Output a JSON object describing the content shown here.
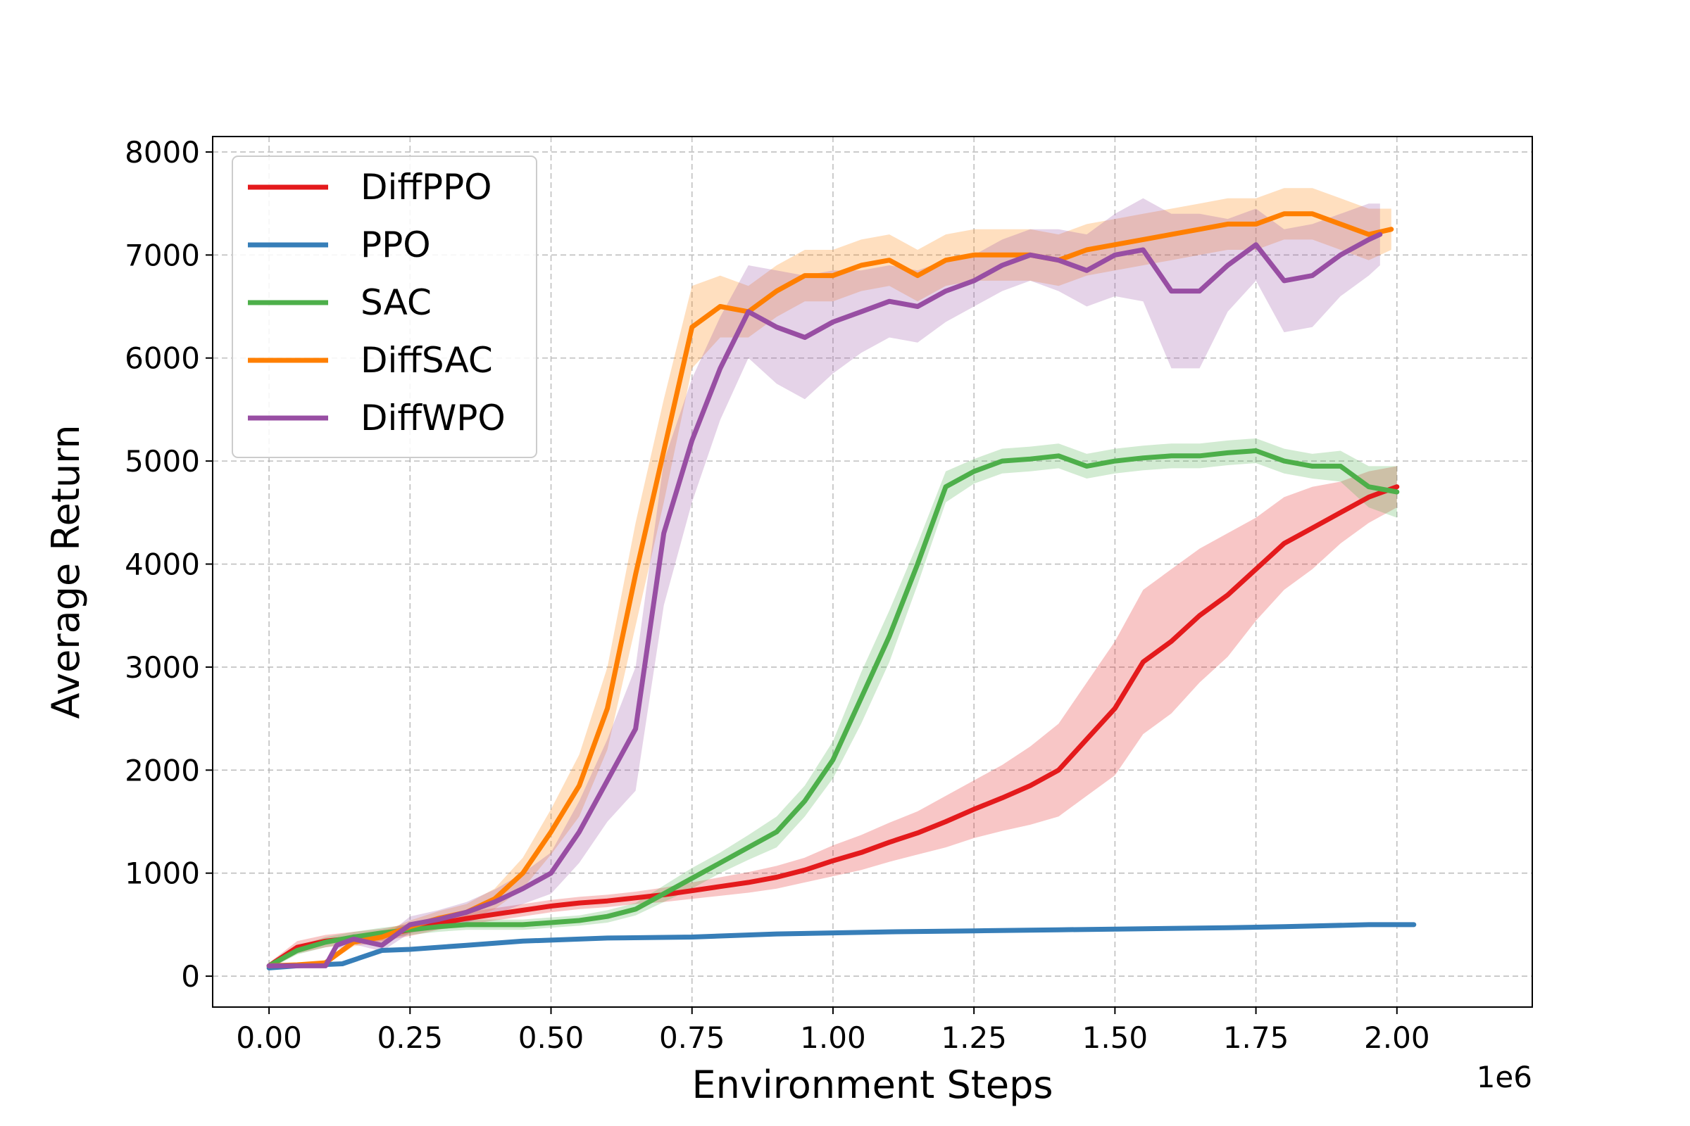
{
  "chart_data": {
    "type": "line",
    "title": "",
    "xlabel": "Environment Steps",
    "ylabel": "Average Return",
    "x_offset_label": "1e6",
    "xlim": [
      -0.1,
      2.24
    ],
    "ylim": [
      -300,
      8150
    ],
    "x_ticks": [
      0.0,
      0.25,
      0.5,
      0.75,
      1.0,
      1.25,
      1.5,
      1.75,
      2.0
    ],
    "x_tick_labels": [
      "0.00",
      "0.25",
      "0.50",
      "0.75",
      "1.00",
      "1.25",
      "1.50",
      "1.75",
      "2.00"
    ],
    "y_ticks": [
      0,
      1000,
      2000,
      3000,
      4000,
      5000,
      6000,
      7000,
      8000
    ],
    "y_tick_labels": [
      "0",
      "1000",
      "2000",
      "3000",
      "4000",
      "5000",
      "6000",
      "7000",
      "8000"
    ],
    "grid": true,
    "legend_position": "top-left",
    "series": [
      {
        "name": "DiffPPO",
        "color": "#e41a1c",
        "x": [
          0.0,
          0.05,
          0.1,
          0.15,
          0.2,
          0.25,
          0.3,
          0.35,
          0.4,
          0.45,
          0.5,
          0.55,
          0.6,
          0.65,
          0.7,
          0.75,
          0.8,
          0.85,
          0.9,
          0.95,
          1.0,
          1.05,
          1.1,
          1.15,
          1.2,
          1.25,
          1.3,
          1.35,
          1.4,
          1.45,
          1.5,
          1.55,
          1.6,
          1.65,
          1.7,
          1.75,
          1.8,
          1.85,
          1.9,
          1.95,
          2.0
        ],
        "y": [
          100,
          280,
          340,
          370,
          400,
          450,
          510,
          560,
          600,
          640,
          680,
          710,
          730,
          760,
          790,
          830,
          870,
          910,
          960,
          1030,
          1120,
          1200,
          1300,
          1390,
          1500,
          1620,
          1730,
          1850,
          2000,
          2300,
          2600,
          3050,
          3250,
          3500,
          3700,
          3950,
          4200,
          4350,
          4500,
          4650,
          4750
        ],
        "band": [
          30,
          60,
          60,
          60,
          60,
          60,
          60,
          60,
          60,
          60,
          60,
          60,
          60,
          60,
          70,
          80,
          90,
          100,
          110,
          120,
          150,
          170,
          190,
          210,
          250,
          280,
          320,
          380,
          450,
          550,
          650,
          700,
          700,
          650,
          600,
          500,
          450,
          400,
          300,
          250,
          200
        ]
      },
      {
        "name": "PPO",
        "color": "#377eb8",
        "x": [
          0.0,
          0.05,
          0.13,
          0.2,
          0.25,
          0.35,
          0.45,
          0.6,
          0.75,
          0.9,
          1.0,
          1.1,
          1.25,
          1.4,
          1.55,
          1.7,
          1.8,
          1.95,
          2.03
        ],
        "y": [
          80,
          100,
          120,
          250,
          260,
          300,
          340,
          370,
          380,
          410,
          420,
          430,
          440,
          450,
          460,
          470,
          480,
          500,
          500
        ],
        "band": [
          20,
          20,
          20,
          20,
          20,
          20,
          20,
          20,
          20,
          20,
          20,
          20,
          20,
          20,
          20,
          20,
          20,
          20,
          20
        ]
      },
      {
        "name": "SAC",
        "color": "#4daf4a",
        "x": [
          0.0,
          0.05,
          0.1,
          0.15,
          0.2,
          0.25,
          0.3,
          0.35,
          0.4,
          0.45,
          0.5,
          0.55,
          0.6,
          0.65,
          0.7,
          0.75,
          0.8,
          0.85,
          0.9,
          0.95,
          1.0,
          1.05,
          1.1,
          1.15,
          1.2,
          1.25,
          1.3,
          1.35,
          1.4,
          1.45,
          1.5,
          1.55,
          1.6,
          1.65,
          1.7,
          1.75,
          1.8,
          1.85,
          1.9,
          1.95,
          2.0
        ],
        "y": [
          100,
          250,
          330,
          380,
          420,
          450,
          480,
          500,
          500,
          500,
          520,
          540,
          580,
          650,
          800,
          950,
          1100,
          1250,
          1400,
          1700,
          2100,
          2700,
          3300,
          4000,
          4750,
          4900,
          5000,
          5020,
          5050,
          4950,
          5000,
          5030,
          5050,
          5050,
          5080,
          5100,
          5000,
          4950,
          4950,
          4750,
          4700
        ],
        "band": [
          30,
          40,
          50,
          50,
          50,
          50,
          50,
          50,
          50,
          50,
          50,
          50,
          60,
          60,
          80,
          100,
          100,
          120,
          150,
          150,
          180,
          250,
          250,
          200,
          150,
          120,
          120,
          120,
          120,
          120,
          120,
          120,
          120,
          120,
          120,
          120,
          120,
          120,
          150,
          200,
          250
        ]
      },
      {
        "name": "DiffSAC",
        "color": "#ff7f00",
        "x": [
          0.0,
          0.05,
          0.1,
          0.15,
          0.2,
          0.25,
          0.3,
          0.35,
          0.4,
          0.45,
          0.5,
          0.55,
          0.6,
          0.65,
          0.7,
          0.75,
          0.8,
          0.85,
          0.9,
          0.95,
          1.0,
          1.05,
          1.1,
          1.15,
          1.2,
          1.25,
          1.3,
          1.35,
          1.4,
          1.45,
          1.5,
          1.55,
          1.6,
          1.65,
          1.7,
          1.75,
          1.8,
          1.85,
          1.9,
          1.95,
          1.99
        ],
        "y": [
          100,
          110,
          130,
          330,
          380,
          480,
          560,
          620,
          750,
          1000,
          1400,
          1850,
          2600,
          3900,
          5100,
          6300,
          6500,
          6450,
          6650,
          6800,
          6800,
          6900,
          6950,
          6800,
          6950,
          7000,
          7000,
          7000,
          6950,
          7050,
          7100,
          7150,
          7200,
          7250,
          7300,
          7300,
          7400,
          7400,
          7300,
          7200,
          7250
        ],
        "band": [
          20,
          20,
          20,
          40,
          50,
          60,
          70,
          80,
          100,
          150,
          220,
          300,
          400,
          500,
          500,
          400,
          300,
          250,
          250,
          250,
          250,
          250,
          250,
          250,
          250,
          250,
          250,
          250,
          250,
          250,
          250,
          250,
          250,
          250,
          250,
          250,
          250,
          250,
          250,
          250,
          200
        ]
      },
      {
        "name": "DiffWPO",
        "color": "#984ea3",
        "x": [
          0.0,
          0.05,
          0.1,
          0.12,
          0.15,
          0.2,
          0.25,
          0.3,
          0.35,
          0.4,
          0.45,
          0.5,
          0.55,
          0.6,
          0.65,
          0.7,
          0.75,
          0.8,
          0.85,
          0.9,
          0.95,
          1.0,
          1.05,
          1.1,
          1.15,
          1.2,
          1.25,
          1.3,
          1.35,
          1.4,
          1.45,
          1.5,
          1.55,
          1.6,
          1.65,
          1.7,
          1.75,
          1.8,
          1.85,
          1.9,
          1.95,
          1.97
        ],
        "y": [
          100,
          100,
          100,
          300,
          360,
          300,
          500,
          550,
          620,
          720,
          850,
          1000,
          1400,
          1900,
          2400,
          4300,
          5200,
          5900,
          6450,
          6300,
          6200,
          6350,
          6450,
          6550,
          6500,
          6650,
          6750,
          6900,
          7000,
          6950,
          6850,
          7000,
          7050,
          6650,
          6650,
          6900,
          7100,
          6750,
          6800,
          7000,
          7150,
          7200
        ],
        "band": [
          20,
          20,
          20,
          40,
          50,
          60,
          80,
          90,
          100,
          120,
          150,
          200,
          300,
          400,
          600,
          700,
          600,
          500,
          450,
          550,
          600,
          500,
          400,
          350,
          350,
          300,
          250,
          250,
          250,
          300,
          350,
          400,
          500,
          750,
          750,
          450,
          350,
          500,
          500,
          400,
          350,
          300
        ]
      }
    ]
  }
}
